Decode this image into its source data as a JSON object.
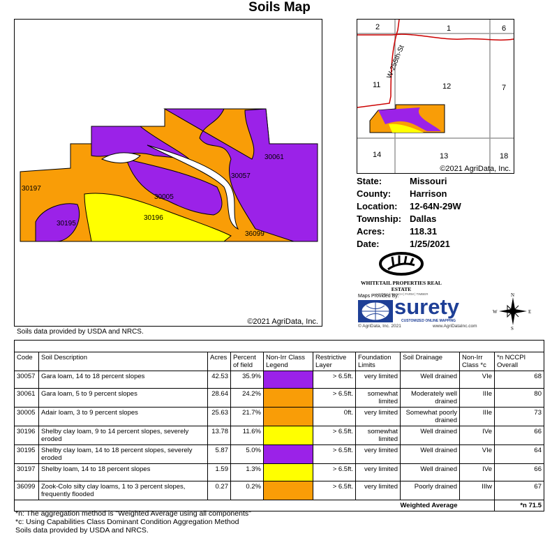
{
  "title": "Soils Map",
  "main_map": {
    "copyright": "©2021 AgriData, Inc.",
    "labels": [
      "30197",
      "30195",
      "30005",
      "30196",
      "30057",
      "30061",
      "36099"
    ]
  },
  "inset_map": {
    "copyright": "©2021 AgriData, Inc.",
    "road": "W-255th-St",
    "sections": [
      "2",
      "1",
      "6",
      "11",
      "12",
      "7",
      "14",
      "13",
      "18"
    ]
  },
  "info": [
    {
      "label": "State:",
      "value": "Missouri"
    },
    {
      "label": "County:",
      "value": "Harrison"
    },
    {
      "label": "Location:",
      "value": "12-64N-29W"
    },
    {
      "label": "Township:",
      "value": "Dallas"
    },
    {
      "label": "Acres:",
      "value": "118.31"
    },
    {
      "label": "Date:",
      "value": "1/25/2021"
    }
  ],
  "logos": {
    "whitetail": "WHITETAIL PROPERTIES REAL ESTATE",
    "whitetail_sub": "HUNTING | RANCH | FARM | TIMBER",
    "maps_by": "Maps Provided By:",
    "surety": "surety",
    "surety_sub": "CUSTOMIZED ONLINE MAPPING",
    "agridata": "© AgriData, Inc. 2021",
    "website": "www.AgriDataInc.com",
    "compass": {
      "n": "N",
      "s": "S",
      "e": "E",
      "w": "W"
    }
  },
  "source_note": "Soils data provided by USDA and NRCS.",
  "colors": {
    "purple": "#9b22e8",
    "orange": "#f99d07",
    "yellow": "#ffff00"
  },
  "table": {
    "headers": [
      "Code",
      "Soil Description",
      "Acres",
      "Percent of field",
      "Non-Irr Class Legend",
      "Restrictive Layer",
      "Foundation Limits",
      "Soil Drainage",
      "Non-Irr Class *c",
      "*n NCCPI Overall"
    ],
    "rows": [
      {
        "code": "30057",
        "desc": "Gara loam, 14 to 18 percent slopes",
        "acres": "42.53",
        "pct": "35.9%",
        "color": "#9b22e8",
        "layer": "> 6.5ft.",
        "found": "very limited",
        "drain": "Well drained",
        "cls": "VIe",
        "nccpi": "68"
      },
      {
        "code": "30061",
        "desc": "Gara loam, 5 to 9 percent slopes",
        "acres": "28.64",
        "pct": "24.2%",
        "color": "#f99d07",
        "layer": "> 6.5ft.",
        "found": "somewhat limited",
        "drain": "Moderately well drained",
        "cls": "IIIe",
        "nccpi": "80"
      },
      {
        "code": "30005",
        "desc": "Adair loam, 3 to 9 percent slopes",
        "acres": "25.63",
        "pct": "21.7%",
        "color": "#f99d07",
        "layer": "0ft.",
        "found": "very limited",
        "drain": "Somewhat poorly drained",
        "cls": "IIIe",
        "nccpi": "73"
      },
      {
        "code": "30196",
        "desc": "Shelby clay loam, 9 to 14 percent slopes, severely eroded",
        "acres": "13.78",
        "pct": "11.6%",
        "color": "#ffff00",
        "layer": "> 6.5ft.",
        "found": "somewhat limited",
        "drain": "Well drained",
        "cls": "IVe",
        "nccpi": "66"
      },
      {
        "code": "30195",
        "desc": "Shelby clay loam, 14 to 18 percent slopes, severely eroded",
        "acres": "5.87",
        "pct": "5.0%",
        "color": "#9b22e8",
        "layer": "> 6.5ft.",
        "found": "very limited",
        "drain": "Well drained",
        "cls": "VIe",
        "nccpi": "64"
      },
      {
        "code": "30197",
        "desc": "Shelby loam, 14 to 18 percent slopes",
        "acres": "1.59",
        "pct": "1.3%",
        "color": "#ffff00",
        "layer": "> 6.5ft.",
        "found": "very limited",
        "drain": "Well drained",
        "cls": "IVe",
        "nccpi": "66"
      },
      {
        "code": "36099",
        "desc": "Zook-Colo silty clay loams, 1 to 3 percent slopes, frequently flooded",
        "acres": "0.27",
        "pct": "0.2%",
        "color": "#f99d07",
        "layer": "> 6.5ft.",
        "found": "very limited",
        "drain": "Poorly drained",
        "cls": "IIIw",
        "nccpi": "67"
      }
    ],
    "weighted_label": "Weighted Average",
    "weighted_value": "*n 71.5"
  },
  "notes": [
    "*n: The aggregation method is \"Weighted Average using all components\"",
    "*c: Using Capabilities Class Dominant Condition Aggregation Method",
    "Soils data provided by USDA and NRCS."
  ]
}
